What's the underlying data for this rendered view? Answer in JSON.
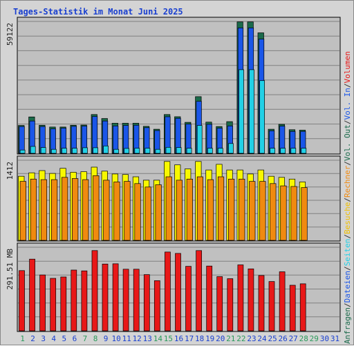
{
  "chart_data": {
    "type": "bar",
    "title": "Tages-Statistik im Monat Juni 2025",
    "days": [
      "1",
      "2",
      "3",
      "4",
      "5",
      "6",
      "7",
      "8",
      "9",
      "10",
      "11",
      "12",
      "13",
      "14",
      "15",
      "16",
      "17",
      "18",
      "19",
      "20",
      "21",
      "22",
      "23",
      "24",
      "25",
      "26",
      "27",
      "28",
      "29",
      "30",
      "31"
    ],
    "weekend_days": [
      "1",
      "7",
      "8",
      "14",
      "15",
      "21",
      "22",
      "28",
      "29"
    ],
    "panels": [
      {
        "id": "requests",
        "ymax_label": "59122",
        "ymax": 59122,
        "series": [
          {
            "name": "Anfragen",
            "color": "#1a6a4a",
            "values": [
              12500,
              16300,
              12600,
              11800,
              11800,
              12600,
              12700,
              17400,
              15600,
              13500,
              13500,
              13500,
              12100,
              10800,
              17400,
              16400,
              13900,
              25400,
              14000,
              12000,
              14200,
              58900,
              58900,
              54000,
              10800,
              13000,
              10600,
              10400,
              null,
              null,
              null
            ]
          },
          {
            "name": "Dateien",
            "color": "#1a56e8",
            "values": [
              12000,
              14500,
              12000,
              11000,
              11300,
              12100,
              12200,
              16500,
              14500,
              12300,
              12500,
              12600,
              11500,
              10200,
              16400,
              15700,
              13100,
              23300,
              13000,
              11300,
              12300,
              56200,
              56200,
              51200,
              10100,
              12200,
              9800,
              9800,
              null,
              null,
              null
            ]
          },
          {
            "name": "Seiten",
            "color": "#22d0e6",
            "values": [
              1500,
              3100,
              2600,
              1800,
              2300,
              2300,
              2500,
              2500,
              3300,
              1800,
              2200,
              2300,
              2300,
              1800,
              2700,
              2600,
              2300,
              12500,
              2300,
              2300,
              4400,
              37500,
              37500,
              32600,
              2300,
              2300,
              2300,
              2300,
              null,
              null,
              null
            ]
          }
        ],
        "legend_colors": {
          "Anfragen": "#1a6a4a",
          "Dateien": "#1a56e8",
          "Seiten": "#22d0e6"
        }
      },
      {
        "id": "visits",
        "ymax_label": "1412",
        "ymax": 1412,
        "series": [
          {
            "name": "Besuche",
            "color": "#f8f800",
            "values": [
              1130,
              1190,
              1230,
              1180,
              1270,
              1200,
              1210,
              1290,
              1220,
              1170,
              1160,
              1120,
              1060,
              1060,
              1390,
              1330,
              1260,
              1390,
              1240,
              1340,
              1240,
              1240,
              1170,
              1240,
              1130,
              1110,
              1080,
              1030,
              null,
              null,
              null
            ]
          },
          {
            "name": "Rechner",
            "color": "#f08a10",
            "values": [
              1040,
              1080,
              1070,
              1070,
              1110,
              1090,
              1070,
              1140,
              1060,
              1030,
              1040,
              1000,
              940,
              980,
              1120,
              1060,
              1080,
              1120,
              1070,
              1120,
              1080,
              1080,
              1040,
              1040,
              1000,
              960,
              950,
              930,
              null,
              null,
              null
            ]
          }
        ],
        "legend_colors": {
          "Besuche": "#f8f800",
          "Rechner": "#f08a10"
        }
      },
      {
        "id": "volume",
        "ymax_label": "291.51 MB",
        "ymax": 291.51,
        "series": [
          {
            "name": "Volumen",
            "color": "#e81818",
            "values": [
              210,
              250,
              195,
              183,
              188,
              212,
              209,
              280,
              233,
              234,
              215,
              215,
              196,
              175,
              275,
              270,
              225,
              280,
              226,
              189,
              182,
              230,
              216,
              193,
              172,
              206,
              159,
              164,
              null,
              null,
              null
            ]
          }
        ],
        "legend_colors": {
          "Volumen": "#e81818"
        }
      }
    ],
    "legend_vertical": [
      {
        "text": "Anfragen",
        "color": "#1a6a4a"
      },
      {
        "text": "/",
        "color": "#333333"
      },
      {
        "text": "Dateien",
        "color": "#1a56e8"
      },
      {
        "text": "/",
        "color": "#333333"
      },
      {
        "text": "Seiten",
        "color": "#22d0e6"
      },
      {
        "text": "/",
        "color": "#333333"
      },
      {
        "text": "Besuche",
        "color": "#f0c000"
      },
      {
        "text": "/",
        "color": "#333333"
      },
      {
        "text": "Rechner",
        "color": "#f08a10"
      },
      {
        "text": "/",
        "color": "#333333"
      },
      {
        "text": "Vol. Out",
        "color": "#1a6a4a"
      },
      {
        "text": "/",
        "color": "#333333"
      },
      {
        "text": "Vol. In",
        "color": "#1a56e8"
      },
      {
        "text": "/",
        "color": "#333333"
      },
      {
        "text": "Volumen",
        "color": "#e81818"
      }
    ],
    "colors": {
      "title": "#1a40d0",
      "panel_bg": "#c0c0c0",
      "grid": "#808080",
      "weekday_label": "#1a40d0",
      "weekend_label": "#2a9a5a",
      "axis_label": "#222222"
    }
  }
}
